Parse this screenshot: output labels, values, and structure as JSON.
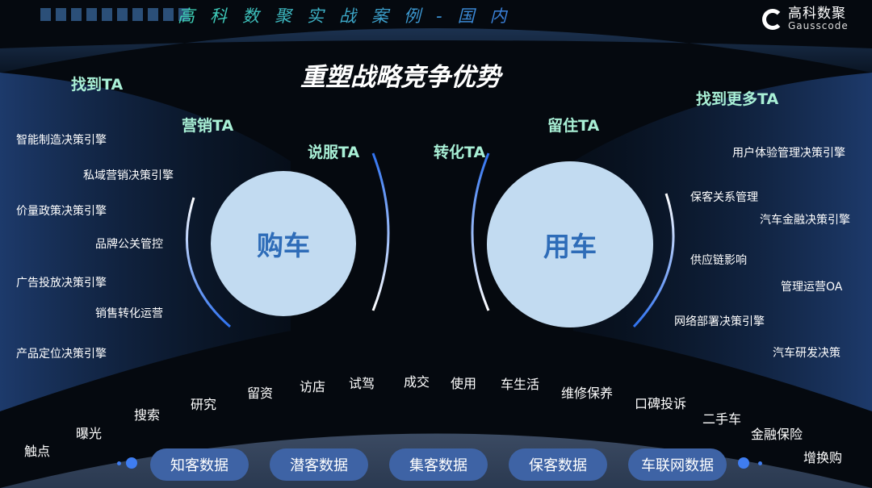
{
  "header": {
    "title": "高科数聚实战案例-国内",
    "logo_cn": "高科数聚",
    "logo_en": "Gausscode"
  },
  "main_title": "重塑战略竞争优势",
  "ta_labels": {
    "find": "找到TA",
    "market": "营销TA",
    "persuade": "说服TA",
    "convert": "转化TA",
    "retain": "留住TA",
    "find_more": "找到更多TA"
  },
  "circles": {
    "buy": "购车",
    "use": "用车"
  },
  "left_engines": [
    "智能制造决策引擎",
    "私域营销决策引擎",
    "价量政策决策引擎",
    "品牌公关管控",
    "广告投放决策引擎",
    "销售转化运营",
    "产品定位决策引擎"
  ],
  "right_engines": [
    "用户体验管理决策引擎",
    "保客关系管理",
    "汽车金融决策引擎",
    "供应链影响",
    "管理运营OA",
    "网络部署决策引擎",
    "汽车研发决策"
  ],
  "journey": [
    "触点",
    "曝光",
    "搜索",
    "研究",
    "留资",
    "访店",
    "试驾",
    "成交",
    "使用",
    "车生活",
    "维修保养",
    "口碑投诉",
    "二手车",
    "金融保险",
    "增换购"
  ],
  "data_buttons": [
    "知客数据",
    "潜客数据",
    "集客数据",
    "保客数据",
    "车联网数据"
  ],
  "colors": {
    "ta_label": "#a9f0d6",
    "circle_fill": "#c2dbf1",
    "circle_text": "#2e6cb8",
    "pill": "#3e63a5",
    "arrow": "#3f7df0"
  }
}
